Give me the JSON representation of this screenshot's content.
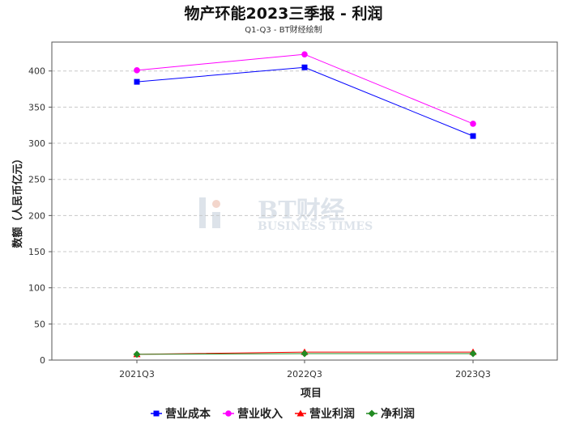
{
  "chart_data": {
    "type": "line",
    "title": "物产环能2023三季报 - 利润",
    "subtitle": "Q1-Q3 - BT财经绘制",
    "xlabel": "项目",
    "ylabel": "数额（人民币亿元）",
    "categories": [
      "2021Q3",
      "2022Q3",
      "2023Q3"
    ],
    "ylim": [
      0,
      440
    ],
    "yticks": [
      0,
      50,
      100,
      150,
      200,
      250,
      300,
      350,
      400
    ],
    "grid": true,
    "legend_position": "bottom",
    "series": [
      {
        "name": "营业成本",
        "color": "#0000ff",
        "marker": "square",
        "values": [
          385,
          405,
          310
        ]
      },
      {
        "name": "营业收入",
        "color": "#ff00ff",
        "marker": "circle",
        "values": [
          401,
          423,
          327
        ]
      },
      {
        "name": "营业利润",
        "color": "#ff0000",
        "marker": "triangle",
        "values": [
          8,
          11,
          11
        ]
      },
      {
        "name": "净利润",
        "color": "#228b22",
        "marker": "diamond",
        "values": [
          8,
          9,
          9
        ]
      }
    ]
  },
  "watermark": {
    "text_main": "BT财经",
    "text_sub": "BUSINESS TIMES"
  }
}
